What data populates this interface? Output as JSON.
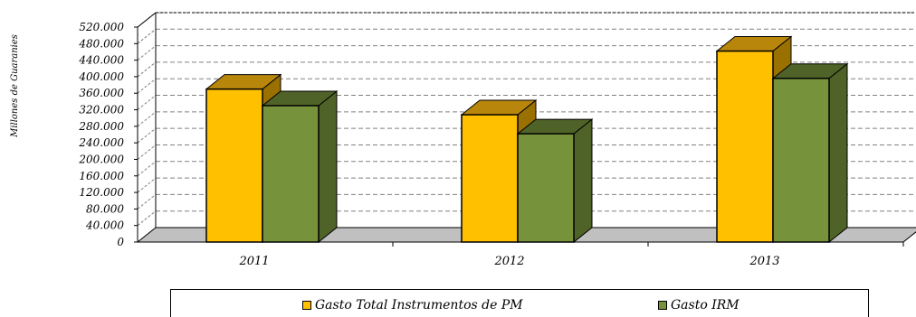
{
  "chart_data": {
    "type": "bar",
    "title": "",
    "xlabel": "",
    "ylabel": "Millones de Guaranies",
    "categories": [
      "2011",
      "2012",
      "2013"
    ],
    "series": [
      {
        "name": "Gasto Total Instrumentos de PM",
        "color": "#FFC000",
        "top_color": "#B8860B",
        "side_color": "#9A7000",
        "values": [
          370000,
          308000,
          462000
        ]
      },
      {
        "name": "Gasto IRM",
        "color": "#76933C",
        "top_color": "#4F6228",
        "side_color": "#4F6228",
        "values": [
          330000,
          262000,
          396000
        ]
      }
    ],
    "ylim": [
      0,
      520000
    ],
    "yticks": [
      "0",
      "40.000",
      "80.000",
      "120.000",
      "160.000",
      "200.000",
      "240.000",
      "280.000",
      "320.000",
      "360.000",
      "400.000",
      "440.000",
      "480.000",
      "520.000"
    ],
    "grid": true,
    "legend": "bottom",
    "three_d": true
  }
}
